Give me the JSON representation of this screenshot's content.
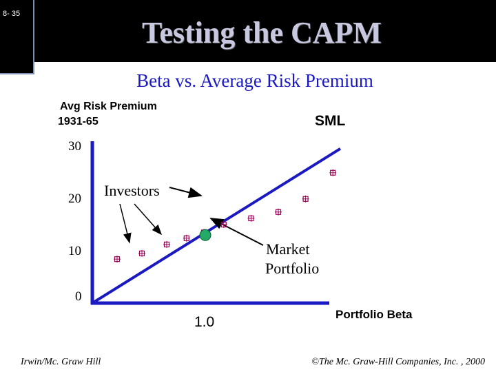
{
  "slide": {
    "number": "8- 35",
    "title": "Testing the CAPM",
    "footer_left": "Irwin/Mc. Graw Hill",
    "footer_right": "©The Mc. Graw-Hill Companies, Inc. , 2000"
  },
  "colors": {
    "header": "#000000",
    "title": "#c8c8e0",
    "subtitle": "#1a1ac0",
    "axis": "#1a1ac0",
    "sml": "#1a1ac0",
    "points": "#990055",
    "market": "#22aa66"
  },
  "chart_data": {
    "type": "scatter",
    "title": "Beta vs. Average Risk Premium",
    "ylabel": "Avg Risk Premium 1931-65",
    "xlabel": "Portfolio Beta",
    "x_ticks": [
      "1.0"
    ],
    "y_ticks": [
      30,
      20,
      10,
      0
    ],
    "series": [
      {
        "name": "SML"
      }
    ],
    "investors": {
      "label": "Investors",
      "points": [
        {
          "x": 0.2,
          "y": 8.4
        },
        {
          "x": 0.4,
          "y": 9.5
        },
        {
          "x": 0.6,
          "y": 11.2
        },
        {
          "x": 0.76,
          "y": 12.4
        },
        {
          "x": 0.9,
          "y": 13.5
        },
        {
          "x": 1.06,
          "y": 15.0
        },
        {
          "x": 1.28,
          "y": 16.2
        },
        {
          "x": 1.5,
          "y": 17.4
        },
        {
          "x": 1.72,
          "y": 19.9
        },
        {
          "x": 1.94,
          "y": 24.9
        }
      ]
    },
    "market_portfolio": {
      "label": "Market Portfolio",
      "x": 1.0,
      "y": 14.7
    },
    "sml_line": [
      {
        "x": 0,
        "y": 0
      },
      {
        "x": 2.0,
        "y": 29.5
      }
    ]
  }
}
